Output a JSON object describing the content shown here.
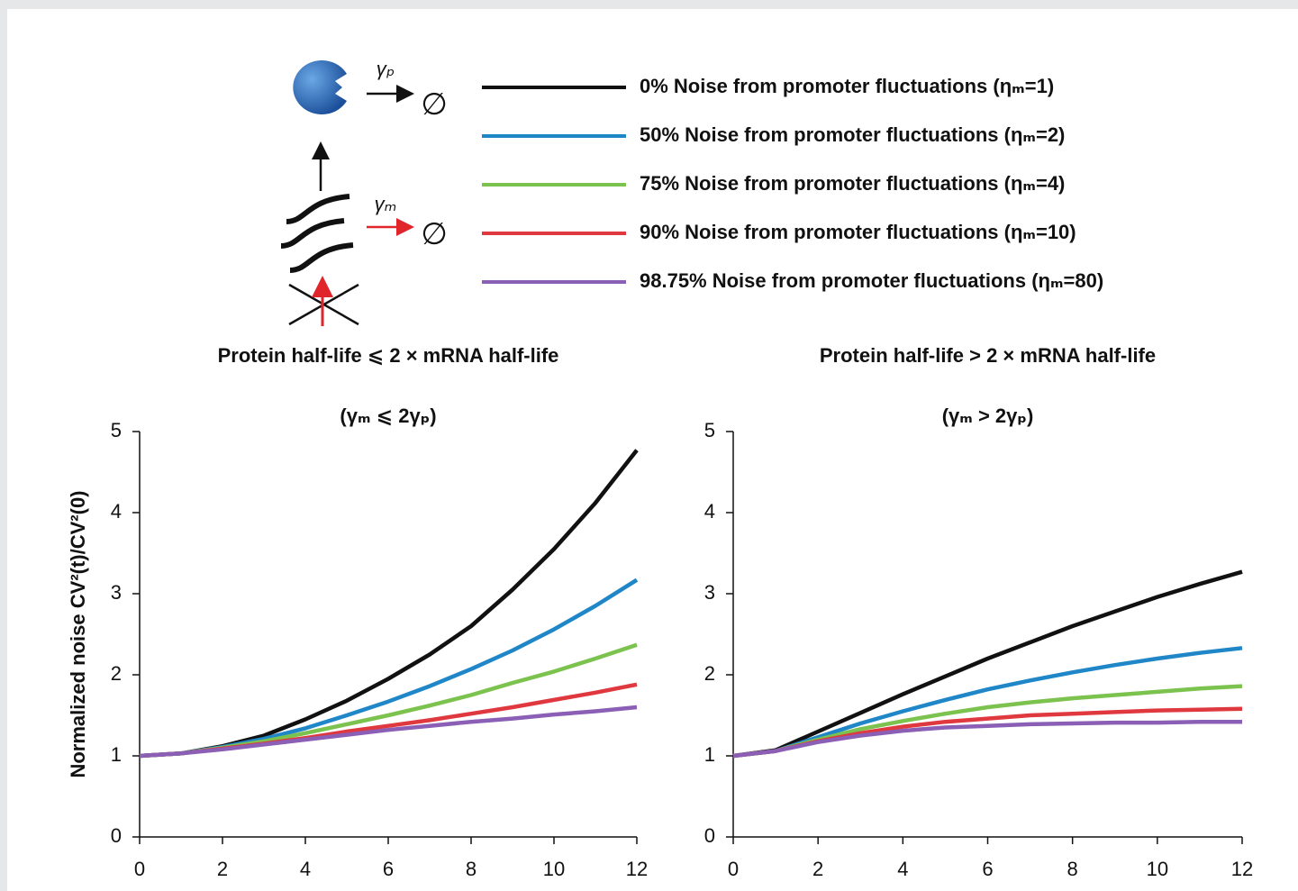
{
  "diagram": {
    "protein_decay_label": "γₚ",
    "mrna_decay_label": "γₘ",
    "degraded": "∅"
  },
  "chart_data": [
    {
      "type": "line",
      "title": "Protein half-life ⩽ 2 × mRNA half-life",
      "subtitle": "(γₘ ⩽ 2γₚ)",
      "ylabel": "Normalized noise CV²(t)/CV²(0)",
      "x": [
        0,
        1,
        2,
        3,
        4,
        5,
        6,
        7,
        8,
        9,
        10,
        11,
        12
      ],
      "xlim": [
        0,
        12
      ],
      "xticks": [
        0,
        2,
        4,
        6,
        8,
        10,
        12
      ],
      "ylim": [
        0,
        5
      ],
      "yticks": [
        0,
        1,
        2,
        3,
        4,
        5
      ],
      "grid": false,
      "series": [
        {
          "name": "0% Noise from promoter fluctuations (ηₘ=1)",
          "color": "#111111",
          "values": [
            1,
            1.03,
            1.12,
            1.25,
            1.45,
            1.68,
            1.95,
            2.25,
            2.6,
            3.05,
            3.55,
            4.12,
            4.77
          ]
        },
        {
          "name": "50% Noise from promoter fluctuations (ηₘ=2)",
          "color": "#1f86c8",
          "values": [
            1,
            1.03,
            1.11,
            1.21,
            1.34,
            1.5,
            1.67,
            1.86,
            2.07,
            2.3,
            2.56,
            2.85,
            3.17
          ]
        },
        {
          "name": "75% Noise from promoter fluctuations (ηₘ=4)",
          "color": "#7cc24f",
          "values": [
            1,
            1.03,
            1.1,
            1.18,
            1.28,
            1.39,
            1.5,
            1.62,
            1.75,
            1.9,
            2.04,
            2.2,
            2.37
          ]
        },
        {
          "name": "90% Noise from promoter fluctuations (ηₘ=10)",
          "color": "#e0383f",
          "values": [
            1,
            1.03,
            1.09,
            1.15,
            1.22,
            1.3,
            1.37,
            1.44,
            1.52,
            1.6,
            1.69,
            1.78,
            1.88
          ]
        },
        {
          "name": "98.75% Noise from promoter fluctuations (ηₘ=80)",
          "color": "#8a5fb5",
          "values": [
            1,
            1.03,
            1.08,
            1.14,
            1.2,
            1.26,
            1.32,
            1.37,
            1.42,
            1.46,
            1.51,
            1.55,
            1.6
          ]
        }
      ]
    },
    {
      "type": "line",
      "title": "Protein half-life > 2 × mRNA half-life",
      "subtitle": "(γₘ > 2γₚ)",
      "x": [
        0,
        1,
        2,
        3,
        4,
        5,
        6,
        7,
        8,
        9,
        10,
        11,
        12
      ],
      "xlim": [
        0,
        12
      ],
      "xticks": [
        0,
        2,
        4,
        6,
        8,
        10,
        12
      ],
      "ylim": [
        0,
        5
      ],
      "yticks": [
        0,
        1,
        2,
        3,
        4,
        5
      ],
      "grid": false,
      "series": [
        {
          "color": "#111111",
          "values": [
            1,
            1.07,
            1.3,
            1.53,
            1.76,
            1.98,
            2.2,
            2.4,
            2.6,
            2.78,
            2.96,
            3.12,
            3.27
          ]
        },
        {
          "color": "#1f86c8",
          "values": [
            1,
            1.06,
            1.23,
            1.4,
            1.55,
            1.69,
            1.82,
            1.93,
            2.03,
            2.12,
            2.2,
            2.27,
            2.33
          ]
        },
        {
          "color": "#7cc24f",
          "values": [
            1,
            1.06,
            1.2,
            1.33,
            1.43,
            1.52,
            1.6,
            1.66,
            1.71,
            1.75,
            1.79,
            1.83,
            1.86
          ]
        },
        {
          "color": "#e0383f",
          "values": [
            1,
            1.06,
            1.18,
            1.28,
            1.36,
            1.42,
            1.46,
            1.5,
            1.52,
            1.54,
            1.56,
            1.57,
            1.58
          ]
        },
        {
          "color": "#8a5fb5",
          "values": [
            1,
            1.06,
            1.17,
            1.25,
            1.31,
            1.35,
            1.37,
            1.39,
            1.4,
            1.41,
            1.41,
            1.42,
            1.42
          ]
        }
      ]
    }
  ]
}
